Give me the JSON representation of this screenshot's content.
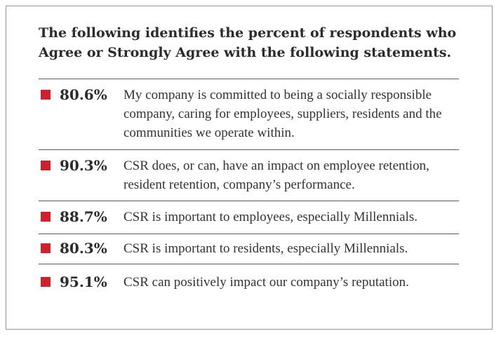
{
  "heading": "The following identifies the percent of respondents who Agree or Strongly Agree with the following statements.",
  "marker_color": "#d0202e",
  "statements": [
    {
      "percent": "80.6%",
      "text": "My company is committed to being a socially responsible company, caring for employees, suppliers, residents and the communities we operate within."
    },
    {
      "percent": "90.3%",
      "text": "CSR does, or can, have an impact on employee retention, resident retention, company’s performance."
    },
    {
      "percent": "88.7%",
      "text": "CSR is important to employees, especially Millennials."
    },
    {
      "percent": "80.3%",
      "text": "CSR is important to residents, especially Millennials."
    },
    {
      "percent": "95.1%",
      "text": "CSR can positively impact our company’s reputation."
    }
  ]
}
